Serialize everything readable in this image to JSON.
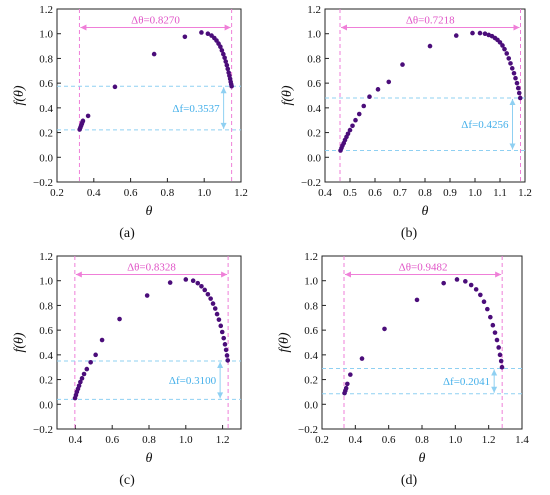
{
  "colors": {
    "points": "#4b0d7a",
    "pink_guides": "#ef7fd8",
    "blue_guides": "#8fd0f2",
    "pink_text": "#e055c7",
    "blue_text": "#45b0ea"
  },
  "chart_data": [
    {
      "type": "scatter",
      "panel_label": "(a)",
      "xlabel": "θ",
      "ylabel": "f(θ)",
      "xlim": [
        0.2,
        1.2
      ],
      "ylim": [
        -0.2,
        1.2
      ],
      "xticks": [
        "0.2",
        "0.4",
        "0.6",
        "0.8",
        "1.0",
        "1.2"
      ],
      "yticks": [
        "−0.2",
        "0.0",
        "0.2",
        "0.4",
        "0.6",
        "0.8",
        "1.0",
        "1.2"
      ],
      "x": [
        0.323,
        0.327,
        0.331,
        0.335,
        0.338,
        0.341,
        0.369,
        0.515,
        0.728,
        0.895,
        0.985,
        1.02,
        1.04,
        1.055,
        1.067,
        1.078,
        1.088,
        1.096,
        1.104,
        1.111,
        1.117,
        1.123,
        1.128,
        1.133,
        1.137,
        1.141,
        1.144,
        1.147,
        1.149
      ],
      "y": [
        0.225,
        0.24,
        0.255,
        0.27,
        0.285,
        0.295,
        0.335,
        0.57,
        0.835,
        0.975,
        1.01,
        1.0,
        0.985,
        0.965,
        0.945,
        0.92,
        0.895,
        0.865,
        0.835,
        0.805,
        0.775,
        0.745,
        0.715,
        0.685,
        0.66,
        0.635,
        0.61,
        0.59,
        0.575
      ],
      "delta_theta": {
        "label": "Δθ=0.8270",
        "x_from": 0.322,
        "x_to": 1.149,
        "y": 1.05
      },
      "delta_f": {
        "label": "Δf=0.3537",
        "y_from": 0.222,
        "y_to": 0.575,
        "x": 1.149
      }
    },
    {
      "type": "scatter",
      "panel_label": "(b)",
      "xlabel": "θ",
      "ylabel": "f(θ)",
      "xlim": [
        0.4,
        1.2
      ],
      "ylim": [
        -0.2,
        1.2
      ],
      "xticks": [
        "0.4",
        "0.5",
        "0.6",
        "0.7",
        "0.8",
        "0.9",
        "1.0",
        "1.1",
        "1.2"
      ],
      "yticks": [
        "−0.2",
        "0.0",
        "0.2",
        "0.4",
        "0.6",
        "0.8",
        "1.0",
        "1.2"
      ],
      "x": [
        0.462,
        0.466,
        0.47,
        0.475,
        0.48,
        0.486,
        0.492,
        0.5,
        0.51,
        0.522,
        0.537,
        0.555,
        0.578,
        0.612,
        0.655,
        0.71,
        0.82,
        0.925,
        0.99,
        1.02,
        1.04,
        1.055,
        1.068,
        1.08,
        1.09,
        1.1,
        1.11,
        1.118,
        1.127,
        1.135,
        1.142,
        1.149,
        1.156,
        1.162,
        1.168,
        1.173,
        1.177,
        1.181
      ],
      "y": [
        0.055,
        0.075,
        0.095,
        0.115,
        0.14,
        0.165,
        0.19,
        0.22,
        0.255,
        0.3,
        0.35,
        0.415,
        0.49,
        0.55,
        0.61,
        0.75,
        0.9,
        0.985,
        1.005,
        1.005,
        1.0,
        0.99,
        0.98,
        0.965,
        0.95,
        0.93,
        0.905,
        0.875,
        0.84,
        0.8,
        0.76,
        0.72,
        0.68,
        0.64,
        0.6,
        0.56,
        0.52,
        0.48
      ],
      "delta_theta": {
        "label": "Δθ=0.7218",
        "x_from": 0.46,
        "x_to": 1.182,
        "y": 1.05
      },
      "delta_f": {
        "label": "Δf=0.4256",
        "y_from": 0.055,
        "y_to": 0.48,
        "x": 1.182
      }
    },
    {
      "type": "scatter",
      "panel_label": "(c)",
      "xlabel": "θ",
      "ylabel": "f(θ)",
      "xlim": [
        0.3,
        1.3
      ],
      "ylim": [
        -0.2,
        1.2
      ],
      "xticks": [
        "0.4",
        "0.6",
        "0.8",
        "1.0",
        "1.2"
      ],
      "yticks": [
        "−0.2",
        "0.0",
        "0.2",
        "0.4",
        "0.6",
        "0.8",
        "1.0",
        "1.2"
      ],
      "x": [
        0.398,
        0.403,
        0.408,
        0.414,
        0.42,
        0.427,
        0.436,
        0.447,
        0.462,
        0.483,
        0.51,
        0.545,
        0.64,
        0.79,
        0.915,
        1.0,
        1.04,
        1.065,
        1.085,
        1.103,
        1.12,
        1.135,
        1.148,
        1.16,
        1.17,
        1.18,
        1.19,
        1.198,
        1.206,
        1.213,
        1.219,
        1.224,
        1.228
      ],
      "y": [
        0.05,
        0.075,
        0.1,
        0.125,
        0.15,
        0.18,
        0.21,
        0.245,
        0.285,
        0.34,
        0.4,
        0.52,
        0.69,
        0.88,
        0.985,
        1.01,
        1.0,
        0.98,
        0.955,
        0.925,
        0.89,
        0.855,
        0.815,
        0.775,
        0.73,
        0.685,
        0.635,
        0.585,
        0.535,
        0.485,
        0.44,
        0.395,
        0.355
      ],
      "delta_theta": {
        "label": "Δθ=0.8328",
        "x_from": 0.397,
        "x_to": 1.23,
        "y": 1.05
      },
      "delta_f": {
        "label": "Δf=0.3100",
        "y_from": 0.04,
        "y_to": 0.35,
        "x": 1.23
      }
    },
    {
      "type": "scatter",
      "panel_label": "(d)",
      "xlabel": "θ",
      "ylabel": "f(θ)",
      "xlim": [
        0.2,
        1.4
      ],
      "ylim": [
        -0.2,
        1.2
      ],
      "xticks": [
        "0.2",
        "0.4",
        "0.6",
        "0.8",
        "1.0",
        "1.2",
        "1.4"
      ],
      "yticks": [
        "−0.2",
        "0.0",
        "0.2",
        "0.4",
        "0.6",
        "0.8",
        "1.0",
        "1.2"
      ],
      "x": [
        0.335,
        0.34,
        0.345,
        0.352,
        0.37,
        0.44,
        0.575,
        0.77,
        0.93,
        1.01,
        1.06,
        1.095,
        1.125,
        1.15,
        1.172,
        1.192,
        1.21,
        1.225,
        1.238,
        1.25,
        1.26,
        1.268,
        1.275,
        1.28
      ],
      "y": [
        0.09,
        0.11,
        0.13,
        0.165,
        0.24,
        0.37,
        0.61,
        0.845,
        0.98,
        1.01,
        0.995,
        0.965,
        0.93,
        0.885,
        0.83,
        0.77,
        0.705,
        0.64,
        0.58,
        0.52,
        0.46,
        0.4,
        0.35,
        0.3
      ],
      "delta_theta": {
        "label": "Δθ=0.9482",
        "x_from": 0.332,
        "x_to": 1.281,
        "y": 1.05
      },
      "delta_f": {
        "label": "Δf=0.2041",
        "y_from": 0.085,
        "y_to": 0.29,
        "x": 1.281
      }
    }
  ]
}
